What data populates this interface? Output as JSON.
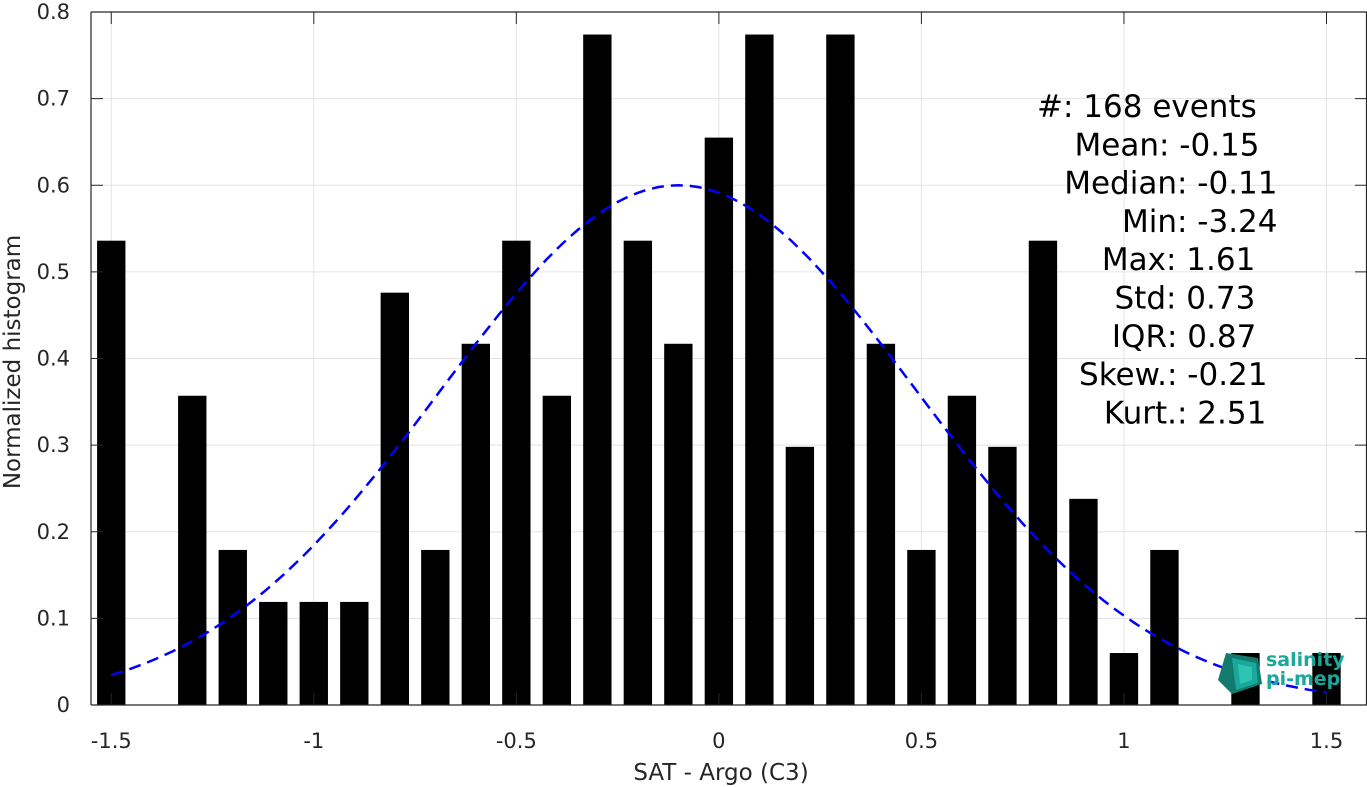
{
  "chart_data": {
    "type": "bar",
    "xlabel": "SAT - Argo (C3)",
    "ylabel": "Normalized histogram",
    "xlim": [
      -1.55,
      1.6
    ],
    "ylim": [
      0,
      0.8
    ],
    "grid": true,
    "xticks": [
      -1.5,
      -1,
      -0.5,
      0,
      0.5,
      1,
      1.5
    ],
    "xtick_labels": [
      "-1.5",
      "-1",
      "-0.5",
      "0",
      "0.5",
      "1",
      "1.5"
    ],
    "yticks": [
      0,
      0.1,
      0.2,
      0.3,
      0.4,
      0.5,
      0.6,
      0.7,
      0.8
    ],
    "ytick_labels": [
      "0",
      "0.1",
      "0.2",
      "0.3",
      "0.4",
      "0.5",
      "0.6",
      "0.7",
      "0.8"
    ],
    "bar_color": "#000000",
    "bars": [
      {
        "x": -1.5,
        "y": 0.536
      },
      {
        "x": -1.3,
        "y": 0.357
      },
      {
        "x": -1.2,
        "y": 0.179
      },
      {
        "x": -1.1,
        "y": 0.119
      },
      {
        "x": -1.0,
        "y": 0.119
      },
      {
        "x": -0.9,
        "y": 0.119
      },
      {
        "x": -0.8,
        "y": 0.476
      },
      {
        "x": -0.7,
        "y": 0.179
      },
      {
        "x": -0.6,
        "y": 0.417
      },
      {
        "x": -0.5,
        "y": 0.536
      },
      {
        "x": -0.4,
        "y": 0.357
      },
      {
        "x": -0.3,
        "y": 0.774
      },
      {
        "x": -0.2,
        "y": 0.536
      },
      {
        "x": -0.1,
        "y": 0.417
      },
      {
        "x": 0.0,
        "y": 0.655
      },
      {
        "x": 0.1,
        "y": 0.774
      },
      {
        "x": 0.2,
        "y": 0.298
      },
      {
        "x": 0.3,
        "y": 0.774
      },
      {
        "x": 0.4,
        "y": 0.417
      },
      {
        "x": 0.5,
        "y": 0.179
      },
      {
        "x": 0.6,
        "y": 0.357
      },
      {
        "x": 0.7,
        "y": 0.298
      },
      {
        "x": 0.8,
        "y": 0.536
      },
      {
        "x": 0.9,
        "y": 0.238
      },
      {
        "x": 1.0,
        "y": 0.06
      },
      {
        "x": 1.1,
        "y": 0.179
      },
      {
        "x": 1.3,
        "y": 0.06
      },
      {
        "x": 1.5,
        "y": 0.06
      }
    ],
    "fit_curve": {
      "style": "dashed",
      "color": "#0000ff",
      "mean": -0.1,
      "peak": 0.6,
      "sigma": 0.586,
      "x_range": [
        -1.5,
        1.5
      ]
    },
    "stats": [
      {
        "label": "#  ",
        "value": ": 168 events"
      },
      {
        "label": "Mean ",
        "value": ": -0.15"
      },
      {
        "label": "Median ",
        "value": ": -0.11"
      },
      {
        "label": "Min ",
        "value": ": -3.24"
      },
      {
        "label": "Max ",
        "value": ": 1.61"
      },
      {
        "label": "Std ",
        "value": ": 0.73"
      },
      {
        "label": "IQR ",
        "value": ": 0.87"
      },
      {
        "label": "Skew. ",
        "value": ": -0.21"
      },
      {
        "label": "Kurt. ",
        "value": ": 2.51"
      }
    ]
  },
  "logo": {
    "line1": "salinity",
    "line2": "pi-mep",
    "color": "#1aa89a",
    "icon": "salinity-pi-mep-logo-icon"
  }
}
